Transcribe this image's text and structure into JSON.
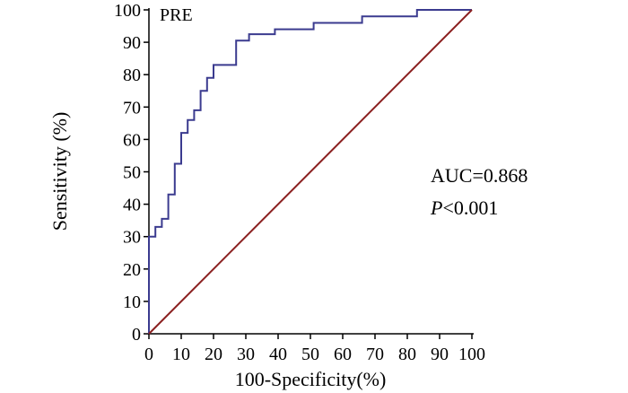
{
  "chart_data": {
    "type": "line",
    "title": "PRE",
    "xlabel": "100-Specificity(%)",
    "ylabel": "Sensitivity (%)",
    "xlim": [
      0,
      100
    ],
    "ylim": [
      0,
      100
    ],
    "xticks": [
      0,
      10,
      20,
      30,
      40,
      50,
      60,
      70,
      80,
      90,
      100
    ],
    "yticks": [
      0,
      10,
      20,
      30,
      40,
      50,
      60,
      70,
      80,
      90,
      100
    ],
    "grid": false,
    "series": [
      {
        "values_xy": [
          [
            0,
            0
          ],
          [
            0,
            30
          ],
          [
            2,
            30
          ],
          [
            2,
            33
          ],
          [
            4,
            33
          ],
          [
            4,
            35.5
          ],
          [
            6,
            35.5
          ],
          [
            6,
            43
          ],
          [
            8,
            43
          ],
          [
            8,
            52.5
          ],
          [
            10,
            52.5
          ],
          [
            10,
            62
          ],
          [
            12,
            62
          ],
          [
            12,
            66
          ],
          [
            14,
            66
          ],
          [
            14,
            69
          ],
          [
            16,
            69
          ],
          [
            16,
            75
          ],
          [
            18,
            75
          ],
          [
            18,
            79
          ],
          [
            20,
            79
          ],
          [
            20,
            83
          ],
          [
            27,
            83
          ],
          [
            27,
            90.5
          ],
          [
            31,
            90.5
          ],
          [
            31,
            92.5
          ],
          [
            39,
            92.5
          ],
          [
            39,
            94
          ],
          [
            51,
            94
          ],
          [
            51,
            96
          ],
          [
            66,
            96
          ],
          [
            66,
            98
          ],
          [
            83,
            98
          ],
          [
            83,
            100
          ],
          [
            100,
            100
          ]
        ],
        "color": "#3b3b8f"
      },
      {
        "values_xy": [
          [
            0,
            0
          ],
          [
            100,
            100
          ]
        ],
        "color": "#8b2020"
      }
    ],
    "annotations": {
      "auc": "AUC=0.868",
      "p_symbol": "P",
      "p_value": "<0.001"
    }
  }
}
